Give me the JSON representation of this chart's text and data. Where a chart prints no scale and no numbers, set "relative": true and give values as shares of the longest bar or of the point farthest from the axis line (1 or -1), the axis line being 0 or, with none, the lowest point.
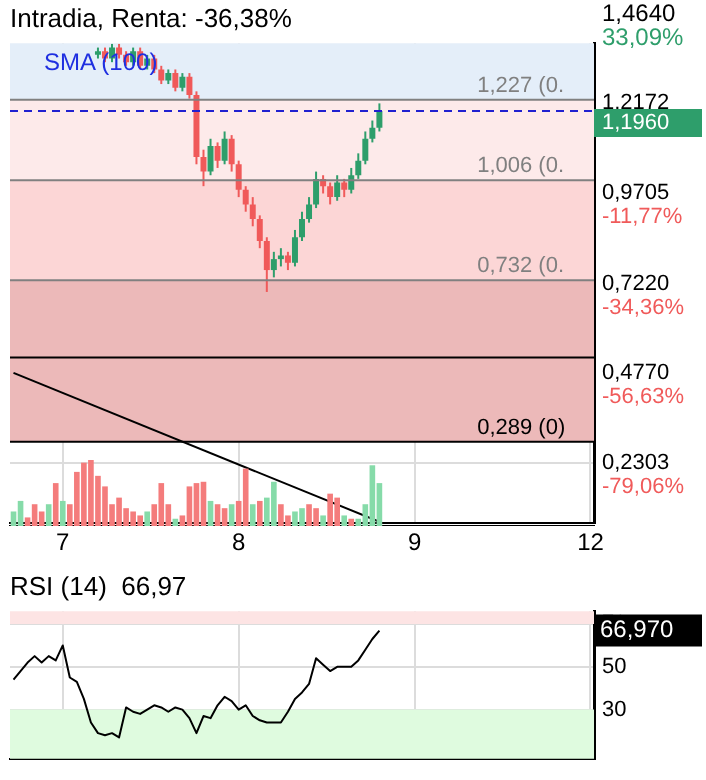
{
  "chart_data": [
    {
      "type": "candlestick",
      "title": "Intradia, Renta: -36,38%",
      "categories": [
        null,
        null,
        null,
        null,
        null,
        null,
        null,
        "7",
        null,
        null,
        null,
        null,
        null,
        null,
        null,
        null,
        null,
        null,
        null,
        null,
        null,
        null,
        null,
        null,
        null,
        null,
        null,
        null,
        null,
        null,
        null,
        null,
        "8",
        null,
        null,
        null,
        null,
        null,
        null,
        null,
        null,
        null,
        null,
        null,
        null,
        null,
        null,
        null,
        null,
        null,
        null,
        null,
        null,
        null,
        null,
        null,
        null,
        "9",
        null,
        null,
        null,
        null,
        null,
        null,
        null,
        null,
        null,
        null,
        null,
        null,
        null,
        null,
        null,
        null,
        null,
        null,
        null,
        null,
        null,
        null,
        null,
        null,
        "12"
      ],
      "ohlc": [
        null,
        null,
        null,
        null,
        null,
        null,
        null,
        null,
        null,
        null,
        null,
        null,
        [
          1.35,
          1.37,
          1.34,
          1.36
        ],
        [
          1.36,
          1.37,
          1.33,
          1.34
        ],
        [
          1.34,
          1.38,
          1.33,
          1.37
        ],
        [
          1.37,
          1.38,
          1.34,
          1.35
        ],
        [
          1.35,
          1.36,
          1.32,
          1.33
        ],
        [
          1.33,
          1.37,
          1.32,
          1.36
        ],
        [
          1.36,
          1.37,
          1.31,
          1.32
        ],
        [
          1.32,
          1.35,
          1.31,
          1.34
        ],
        [
          1.34,
          1.35,
          1.3,
          1.31
        ],
        [
          1.31,
          1.32,
          1.27,
          1.28
        ],
        [
          1.28,
          1.31,
          1.27,
          1.3
        ],
        [
          1.3,
          1.31,
          1.25,
          1.26
        ],
        [
          1.26,
          1.3,
          1.25,
          1.29
        ],
        [
          1.29,
          1.3,
          1.23,
          1.24
        ],
        [
          1.24,
          1.25,
          1.05,
          1.07
        ],
        [
          1.07,
          1.09,
          0.99,
          1.03
        ],
        [
          1.03,
          1.12,
          1.02,
          1.1
        ],
        [
          1.1,
          1.11,
          1.04,
          1.06
        ],
        [
          1.06,
          1.14,
          1.05,
          1.12
        ],
        [
          1.12,
          1.13,
          1.03,
          1.05
        ],
        [
          1.05,
          1.06,
          0.96,
          0.98
        ],
        [
          0.98,
          0.99,
          0.92,
          0.94
        ],
        [
          0.94,
          0.96,
          0.88,
          0.9
        ],
        [
          0.9,
          0.91,
          0.82,
          0.84
        ],
        [
          0.84,
          0.85,
          0.7,
          0.76
        ],
        [
          0.76,
          0.81,
          0.74,
          0.79
        ],
        [
          0.79,
          0.82,
          0.77,
          0.8
        ],
        [
          0.8,
          0.81,
          0.76,
          0.78
        ],
        [
          0.78,
          0.87,
          0.77,
          0.85
        ],
        [
          0.85,
          0.92,
          0.84,
          0.9
        ],
        [
          0.9,
          0.96,
          0.89,
          0.94
        ],
        [
          0.94,
          1.03,
          0.93,
          1.01
        ],
        [
          1.01,
          1.02,
          0.97,
          0.99
        ],
        [
          0.99,
          1.0,
          0.94,
          0.96
        ],
        [
          0.96,
          1.02,
          0.95,
          1.0
        ],
        [
          1.0,
          1.01,
          0.96,
          0.98
        ],
        [
          0.98,
          1.04,
          0.97,
          1.02
        ],
        [
          1.02,
          1.08,
          1.01,
          1.06
        ],
        [
          1.06,
          1.14,
          1.05,
          1.12
        ],
        [
          1.12,
          1.17,
          1.11,
          1.15
        ],
        [
          1.15,
          1.217,
          1.14,
          1.196
        ],
        null,
        null,
        null,
        null,
        null,
        null,
        null,
        null,
        null,
        null,
        null,
        null,
        null,
        null,
        null,
        null,
        null,
        null,
        null,
        null,
        null,
        null,
        null,
        null,
        null,
        null,
        null,
        null,
        null,
        null
      ],
      "series": [
        {
          "type": "line",
          "color": "#000000",
          "values": [
            0.478,
            null,
            null,
            null,
            null,
            null,
            null,
            null,
            null,
            null,
            null,
            null,
            null,
            null,
            null,
            null,
            null,
            null,
            null,
            null,
            null,
            null,
            null,
            null,
            null,
            null,
            null,
            null,
            null,
            null,
            null,
            null,
            null,
            null,
            null,
            null,
            null,
            null,
            null,
            null,
            null,
            null,
            null,
            null,
            null,
            null,
            null,
            null,
            null,
            null,
            null,
            null,
            0.07,
            null,
            null,
            null,
            null,
            null,
            null,
            null,
            null,
            null,
            null,
            null,
            null,
            null,
            null,
            null,
            null,
            null,
            null,
            null,
            null,
            null,
            null,
            null,
            null,
            null,
            null,
            null,
            null,
            null,
            null
          ]
        }
      ],
      "ylim": [
        0.066,
        1.382
      ],
      "yticks": [
        {
          "value": 1.2172,
          "label": "1,2172"
        },
        {
          "value": 0.9705,
          "label": "0,9705"
        },
        {
          "value": 0.722,
          "label": "0,7220"
        },
        {
          "value": 0.477,
          "label": "0,4770"
        },
        {
          "value": 0.2303,
          "label": "0,2303"
        }
      ],
      "y2lim": [
        -94.0,
        25.64
      ],
      "y2ticks": [
        {
          "value": -11.77,
          "label": "-11,77%"
        },
        {
          "value": -34.36,
          "label": "-34,36%"
        },
        {
          "value": -56.63,
          "label": "-56,63%"
        },
        {
          "value": -79.06,
          "label": "-79,06%"
        }
      ],
      "bands": [
        {
          "axis": "y",
          "from": 1.227,
          "to": 1.382,
          "color": "#e4eef9"
        },
        {
          "axis": "y",
          "from": 1.006,
          "to": 1.227,
          "color": "#fdeaea"
        },
        {
          "axis": "y",
          "from": 0.732,
          "to": 1.006,
          "color": "#fcd6d6"
        },
        {
          "axis": "y",
          "from": 0.289,
          "to": 0.732,
          "color": "#ecb9b9"
        }
      ],
      "ref_lines": [
        {
          "axis": "y",
          "value": 1.227,
          "label": "1,227 (0.",
          "color": "#808080",
          "line_style": "solid"
        },
        {
          "axis": "y",
          "value": 1.196,
          "label": "1,1960",
          "color": "#2020d0",
          "line_style": "dashed"
        },
        {
          "axis": "y",
          "value": 1.006,
          "label": "1,006 (0.",
          "color": "#808080",
          "line_style": "solid"
        },
        {
          "axis": "y",
          "value": 0.732,
          "label": "0,732 (0.",
          "color": "#808080",
          "line_style": "solid"
        },
        {
          "axis": "y",
          "value": 0.52,
          "label": null,
          "color": "#000000",
          "line_style": "solid"
        },
        {
          "axis": "y",
          "value": 0.289,
          "label": "0,289 (0)",
          "color": "#000000",
          "line_style": "solid"
        }
      ],
      "annotations": [
        "SMA (100)",
        "1,4640",
        "33,09%"
      ],
      "grid": true
    },
    {
      "type": "bar",
      "relative": true,
      "tick_labels": false,
      "categories": [
        null,
        null,
        null,
        null,
        null,
        null,
        null,
        "7",
        null,
        null,
        null,
        null,
        null,
        null,
        null,
        null,
        null,
        null,
        null,
        null,
        null,
        null,
        null,
        null,
        null,
        null,
        null,
        null,
        null,
        null,
        null,
        null,
        "8",
        null,
        null,
        null,
        null,
        null,
        null,
        null,
        null,
        null,
        null,
        null,
        null,
        null,
        null,
        null,
        null,
        null,
        null,
        null,
        null,
        null,
        null,
        null,
        null,
        "9",
        null,
        null,
        null,
        null,
        null,
        null,
        null,
        null,
        null,
        null,
        null,
        null,
        null,
        null,
        null,
        null,
        null,
        null,
        null,
        null,
        null,
        null,
        null,
        null,
        "12"
      ],
      "values": [
        0.22,
        0.38,
        0.13,
        0.33,
        0.22,
        0.33,
        0.65,
        0.38,
        0.33,
        0.82,
        0.96,
        1,
        0.76,
        0.6,
        0.33,
        0.43,
        0.27,
        0.22,
        0.16,
        0.22,
        0.33,
        0.65,
        0.33,
        0.11,
        0.16,
        0.6,
        0.65,
        0.67,
        0.38,
        0.33,
        0.27,
        0.33,
        0.38,
        0.87,
        0.33,
        0.38,
        0.43,
        0.67,
        0.33,
        0.16,
        0.22,
        0.27,
        0.33,
        0.27,
        0.16,
        0.49,
        0.43,
        0.16,
        0.11,
        0.11,
        0.33,
        0.92,
        0.65,
        null,
        null,
        null,
        null,
        null,
        null,
        null,
        null,
        null,
        null,
        null,
        null,
        null,
        null,
        null,
        null,
        null,
        null,
        null,
        null,
        null,
        null,
        null,
        null,
        null,
        null,
        null,
        null,
        null,
        null
      ],
      "colors": [
        "#86dba9",
        "#86dba9",
        "#f47c7c",
        "#f47c7c",
        "#f47c7c",
        "#86dba9",
        "#f47c7c",
        "#86dba9",
        "#f47c7c",
        "#f47c7c",
        "#f47c7c",
        "#f47c7c",
        "#f47c7c",
        "#f47c7c",
        "#f47c7c",
        "#f47c7c",
        "#f47c7c",
        "#f47c7c",
        "#f47c7c",
        "#86dba9",
        "#f47c7c",
        "#f47c7c",
        "#f47c7c",
        "#86dba9",
        "#f47c7c",
        "#f47c7c",
        "#f47c7c",
        "#f47c7c",
        "#86dba9",
        "#f47c7c",
        "#f47c7c",
        "#86dba9",
        "#f47c7c",
        "#f47c7c",
        "#86dba9",
        "#f47c7c",
        "#86dba9",
        "#86dba9",
        "#f47c7c",
        "#f47c7c",
        "#86dba9",
        "#86dba9",
        "#f47c7c",
        "#f47c7c",
        "#86dba9",
        "#f47c7c",
        "#f47c7c",
        "#86dba9",
        "#f47c7c",
        "#86dba9",
        "#86dba9",
        "#86dba9",
        "#86dba9",
        null,
        null,
        null,
        null,
        null,
        null,
        null,
        null,
        null,
        null,
        null,
        null,
        null,
        null,
        null,
        null,
        null,
        null,
        null,
        null,
        null,
        null,
        null,
        null,
        null,
        null,
        null,
        null,
        null,
        null
      ]
    },
    {
      "type": "line",
      "title": "RSI (14)  66,97",
      "color": "#000000",
      "tick_labels": "y",
      "categories": [
        null,
        null,
        null,
        null,
        null,
        null,
        null,
        "7",
        null,
        null,
        null,
        null,
        null,
        null,
        null,
        null,
        null,
        null,
        null,
        null,
        null,
        null,
        null,
        null,
        null,
        null,
        null,
        null,
        null,
        null,
        null,
        null,
        "8",
        null,
        null,
        null,
        null,
        null,
        null,
        null,
        null,
        null,
        null,
        null,
        null,
        null,
        null,
        null,
        null,
        null,
        null,
        null,
        null,
        null,
        null,
        null,
        null,
        "9",
        null,
        null,
        null,
        null,
        null,
        null,
        null,
        null,
        null,
        null,
        null,
        null,
        null,
        null,
        null,
        null,
        null,
        null,
        null,
        null,
        null,
        null,
        null,
        null,
        "12"
      ],
      "values": [
        44,
        48,
        52,
        55,
        52,
        55,
        53,
        60,
        45,
        43,
        35,
        24,
        19,
        18,
        19,
        17,
        31,
        29,
        28,
        30,
        32,
        31,
        29,
        31,
        30,
        26,
        19,
        27,
        26,
        32,
        36,
        34,
        30,
        32,
        27,
        25,
        24,
        24,
        24,
        29,
        35,
        38,
        42,
        54,
        51,
        48,
        50,
        50,
        50,
        53,
        58,
        63,
        66.97,
        null,
        null,
        null,
        null,
        null,
        null,
        null,
        null,
        null,
        null,
        null,
        null,
        null,
        null,
        null,
        null,
        null,
        null,
        null,
        null,
        null,
        null,
        null,
        null,
        null,
        null,
        null,
        null,
        null,
        null
      ],
      "ylim": [
        7,
        76
      ],
      "yticks": [
        70,
        50,
        30
      ],
      "bands": [
        {
          "axis": "y",
          "from": 70,
          "to": 76,
          "color": "#fde4e4"
        },
        {
          "axis": "y",
          "from": 7,
          "to": 30,
          "color": "#dffbdf"
        }
      ],
      "annotations": [
        "66,970"
      ],
      "grid": true
    }
  ]
}
